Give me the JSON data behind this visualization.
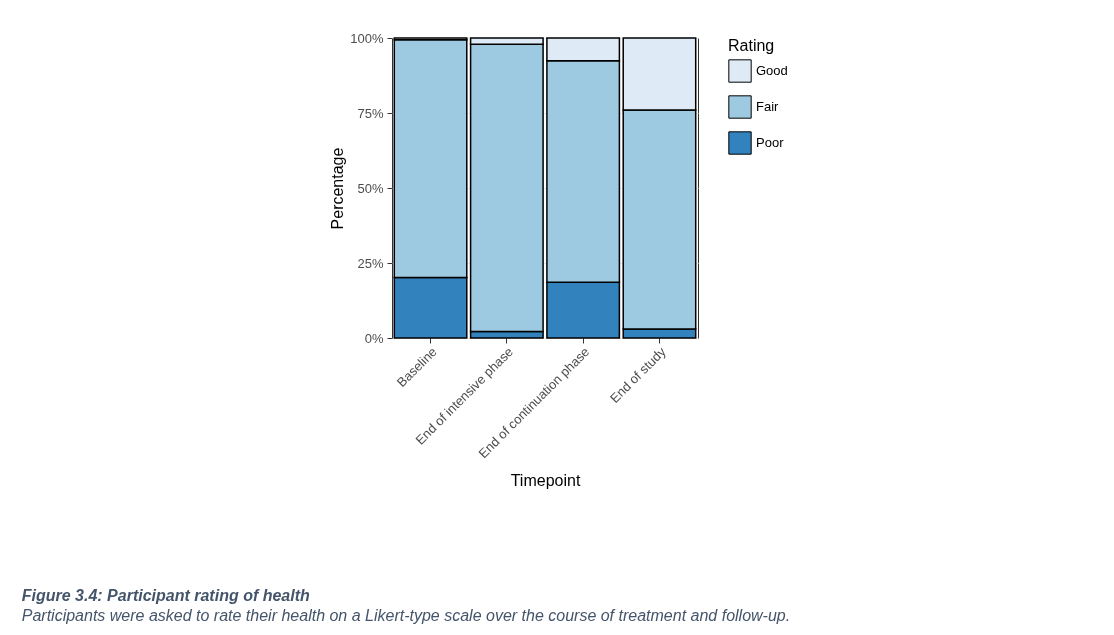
{
  "chart_data": {
    "type": "bar",
    "stacked": true,
    "title": "Figure 3.4: Participant rating of health",
    "subtitle": "Participants were asked to rate their health on a Likert-type scale over the course of treatment and follow-up.",
    "xlabel": "Timepoint",
    "ylabel": "Percentage",
    "legend_title": "Rating",
    "legend": "right",
    "grid": true,
    "categories": [
      "Baseline",
      "End of intensive phase",
      "End of continuation phase",
      "End of study"
    ],
    "series": [
      {
        "name": "Poor",
        "color": "#3182bd",
        "values": [
          20.2,
          2.2,
          18.6,
          3.0
        ]
      },
      {
        "name": "Fair",
        "color": "#9ecae1",
        "values": [
          79.2,
          95.7,
          73.8,
          73.0
        ]
      },
      {
        "name": "Good",
        "color": "#deebf7",
        "values": [
          0.6,
          2.1,
          7.6,
          24.0
        ]
      }
    ],
    "ylim": [
      0,
      100
    ],
    "yticks": [
      {
        "value": 0,
        "label": "0%"
      },
      {
        "value": 25,
        "label": "25%"
      },
      {
        "value": 50,
        "label": "50%"
      },
      {
        "value": 75,
        "label": "75%"
      },
      {
        "value": 100,
        "label": "100%"
      }
    ]
  }
}
